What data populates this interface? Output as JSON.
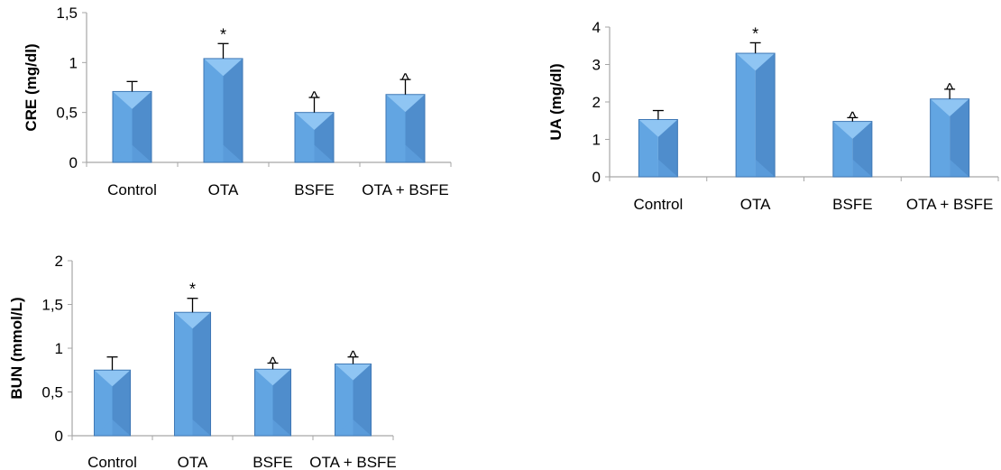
{
  "colors": {
    "bar_top": "#8fc5f3",
    "bar_left": "#62a5e2",
    "bar_right": "#4f8dcc",
    "bar_edge": "#3f78b5",
    "axis": "#a6a6a6",
    "error": "#000000"
  },
  "chart_data": [
    {
      "type": "bar",
      "ylabel": "CRE (mg/dl)",
      "categories": [
        "Control",
        "OTA",
        "BSFE",
        "OTA + BSFE"
      ],
      "values": [
        0.71,
        1.04,
        0.5,
        0.68
      ],
      "error_upper": [
        0.1,
        0.15,
        0.15,
        0.15
      ],
      "annotations": [
        "",
        "*",
        "^",
        "^"
      ],
      "ylim": [
        0,
        1.5
      ],
      "yticks": [
        "0",
        "0,5",
        "1",
        "1,5"
      ],
      "ytick_values": [
        0,
        0.5,
        1,
        1.5
      ],
      "grid": false
    },
    {
      "type": "bar",
      "ylabel": "UA (mg/dl)",
      "categories": [
        "Control",
        "OTA",
        "BSFE",
        "OTA + BSFE"
      ],
      "values": [
        1.53,
        3.3,
        1.48,
        2.08
      ],
      "error_upper": [
        0.24,
        0.28,
        0.1,
        0.26
      ],
      "annotations": [
        "",
        "*",
        "^",
        "^"
      ],
      "ylim": [
        0,
        4
      ],
      "yticks": [
        "0",
        "1",
        "2",
        "3",
        "4"
      ],
      "ytick_values": [
        0,
        1,
        2,
        3,
        4
      ],
      "grid": false
    },
    {
      "type": "bar",
      "ylabel": "BUN (mmol/L)",
      "categories": [
        "Control",
        "OTA",
        "BSFE",
        "OTA + BSFE"
      ],
      "values": [
        0.75,
        1.41,
        0.76,
        0.82
      ],
      "error_upper": [
        0.15,
        0.16,
        0.07,
        0.08
      ],
      "annotations": [
        "",
        "*",
        "^",
        "^"
      ],
      "ylim": [
        0,
        2
      ],
      "yticks": [
        "0",
        "0,5",
        "1",
        "1,5",
        "2"
      ],
      "ytick_values": [
        0,
        0.5,
        1,
        1.5,
        2
      ],
      "grid": false
    }
  ]
}
